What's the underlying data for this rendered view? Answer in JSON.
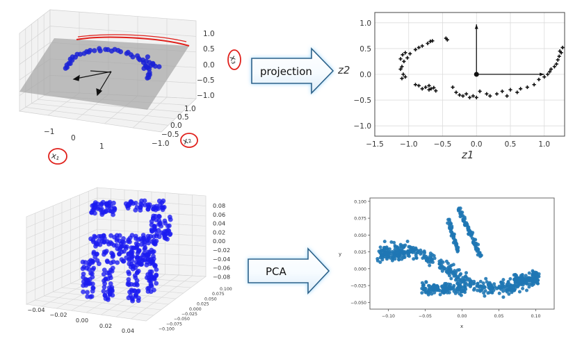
{
  "arrows": {
    "top_label": "projection",
    "bottom_label": "PCA"
  },
  "top_left_3d": {
    "x_ticks": [
      "−1",
      "0",
      "1"
    ],
    "y_ticks": [
      "1.0",
      "0.5",
      "0.0",
      "−0.5",
      "−1.0"
    ],
    "z_ticks": [
      "1.0",
      "0.5",
      "0.0",
      "−0.5",
      "−1.0"
    ],
    "annotations": [
      "x1",
      "x2",
      "x3"
    ],
    "colors": {
      "points": "#1b22d6",
      "plane": "#a6a6a6",
      "ink": "#e0201b"
    }
  },
  "top_right_plot": {
    "xlabel": "z1",
    "ylabel": "z2",
    "x_ticks": [
      "−1.5",
      "−1.0",
      "−0.5",
      "0.0",
      "0.5",
      "1.0"
    ],
    "y_ticks": [
      "1.0",
      "0.5",
      "0.0",
      "−0.5",
      "−1.0"
    ],
    "xlim": [
      -1.5,
      1.3
    ],
    "ylim": [
      -1.2,
      1.2
    ],
    "points": [
      [
        -1.09,
        0.38
      ],
      [
        -1.05,
        0.42
      ],
      [
        -1.12,
        0.3
      ],
      [
        -1.07,
        0.25
      ],
      [
        -1.1,
        0.15
      ],
      [
        -1.12,
        0.1
      ],
      [
        -1.08,
        0.0
      ],
      [
        -1.05,
        -0.05
      ],
      [
        -1.1,
        -0.08
      ],
      [
        -1.02,
        0.32
      ],
      [
        -0.98,
        0.4
      ],
      [
        -0.9,
        0.48
      ],
      [
        -0.85,
        0.52
      ],
      [
        -0.8,
        0.55
      ],
      [
        -0.72,
        0.6
      ],
      [
        -0.68,
        0.64
      ],
      [
        -0.65,
        0.65
      ],
      [
        -0.45,
        0.7
      ],
      [
        -0.43,
        0.67
      ],
      [
        -0.9,
        -0.2
      ],
      [
        -0.85,
        -0.22
      ],
      [
        -0.8,
        -0.28
      ],
      [
        -0.75,
        -0.25
      ],
      [
        -0.7,
        -0.22
      ],
      [
        -0.67,
        -0.28
      ],
      [
        -0.63,
        -0.26
      ],
      [
        -0.6,
        -0.32
      ],
      [
        -0.7,
        -0.3
      ],
      [
        -0.35,
        -0.25
      ],
      [
        -0.3,
        -0.35
      ],
      [
        -0.25,
        -0.4
      ],
      [
        -0.2,
        -0.42
      ],
      [
        -0.15,
        -0.38
      ],
      [
        -0.1,
        -0.45
      ],
      [
        -0.05,
        -0.42
      ],
      [
        0.0,
        -0.45
      ],
      [
        0.05,
        -0.33
      ],
      [
        0.15,
        -0.38
      ],
      [
        0.2,
        -0.42
      ],
      [
        0.3,
        -0.38
      ],
      [
        0.38,
        -0.33
      ],
      [
        0.45,
        -0.42
      ],
      [
        0.5,
        -0.3
      ],
      [
        0.6,
        -0.35
      ],
      [
        0.65,
        -0.28
      ],
      [
        0.75,
        -0.25
      ],
      [
        0.85,
        -0.2
      ],
      [
        0.92,
        -0.1
      ],
      [
        1.0,
        -0.05
      ],
      [
        1.05,
        0.0
      ],
      [
        1.08,
        0.05
      ],
      [
        1.1,
        0.1
      ],
      [
        1.15,
        0.15
      ],
      [
        1.18,
        0.2
      ],
      [
        1.2,
        0.28
      ],
      [
        1.22,
        0.35
      ],
      [
        1.25,
        0.42
      ],
      [
        1.27,
        0.52
      ],
      [
        1.23,
        0.45
      ]
    ],
    "vectors": [
      [
        0.0,
        0.97
      ],
      [
        1.0,
        0.0
      ]
    ]
  },
  "bottom_left_3d": {
    "x_ticks": [
      "−0.04",
      "−0.02",
      "0.00",
      "0.02",
      "0.04"
    ],
    "y_ticks": [
      "0.100",
      "0.075",
      "0.050",
      "0.025",
      "0.000",
      "−0.025",
      "−0.050",
      "−0.075",
      "−0.100"
    ],
    "z_ticks": [
      "0.08",
      "0.06",
      "0.04",
      "0.02",
      "0.00",
      "−0.02",
      "−0.04",
      "−0.06",
      "−0.08"
    ],
    "colors": {
      "points": "#1b1bf0"
    }
  },
  "bottom_right_plot": {
    "xlabel": "x",
    "ylabel": "y",
    "x_ticks": [
      "−0.10",
      "−0.05",
      "0.00",
      "0.05",
      "0.10"
    ],
    "y_ticks": [
      "0.100",
      "0.075",
      "0.050",
      "0.025",
      "0.000",
      "−0.025",
      "−0.050"
    ],
    "xlim": [
      -0.125,
      0.125
    ],
    "ylim": [
      -0.06,
      0.105
    ],
    "colors": {
      "points": "#1f77b4"
    }
  }
}
